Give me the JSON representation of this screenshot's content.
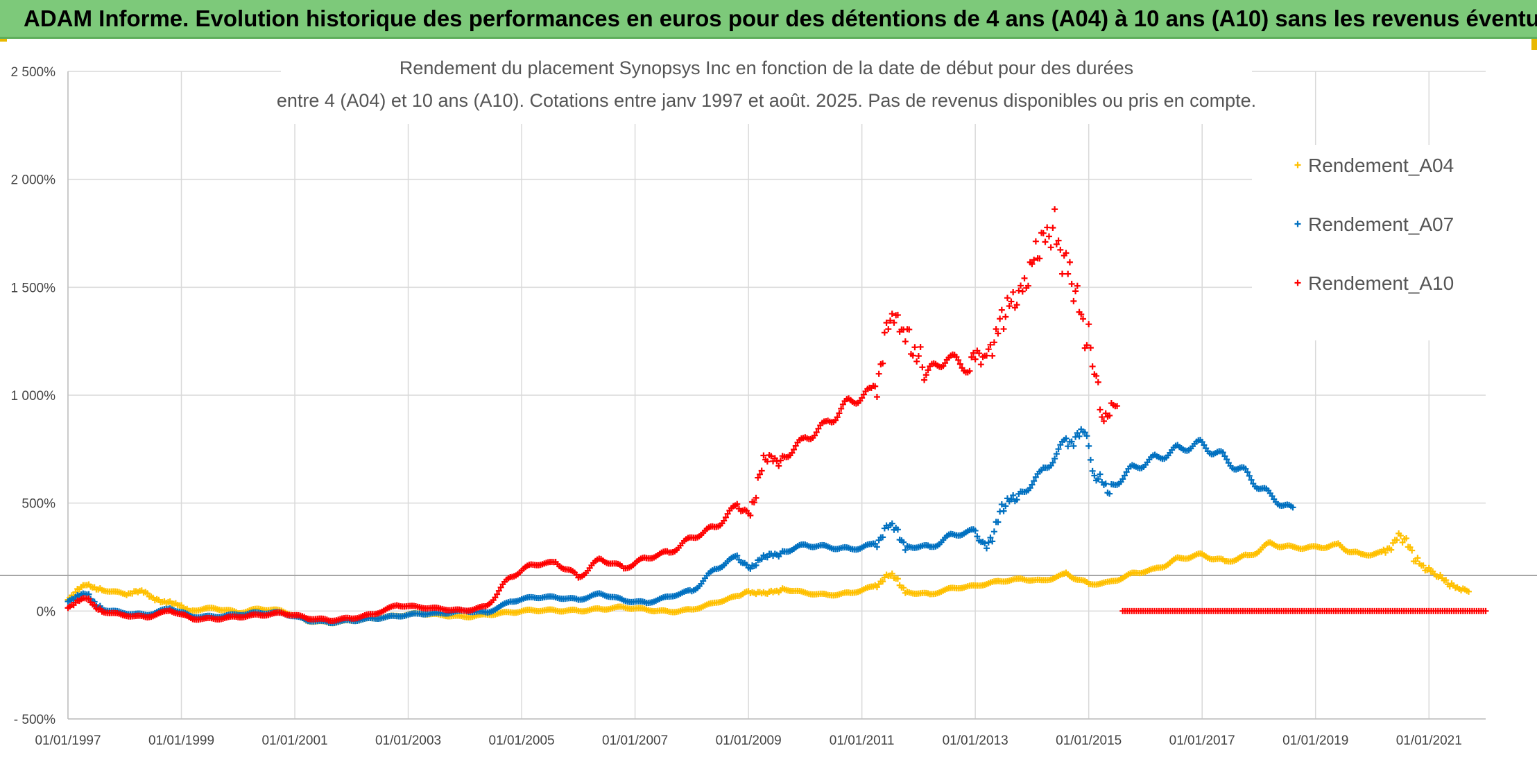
{
  "banner": {
    "text": "ADAM Informe. Evolution historique des performances en euros pour des détentions de 4 ans (A04) à 10 ans (A10) sans les revenus éventuels"
  },
  "chart_data": {
    "type": "scatter",
    "title_line1": "Rendement du placement Synopsys Inc en fonction de la date de début pour des durées",
    "title_line2": "entre 4 (A04) et 10 ans (A10). Cotations entre janv 1997 et août. 2025. Pas de revenus disponibles ou pris en compte.",
    "x_tick_labels": [
      "01/01/1997",
      "01/01/1999",
      "01/01/2001",
      "01/01/2003",
      "01/01/2005",
      "01/01/2007",
      "01/01/2009",
      "01/01/2011",
      "01/01/2013",
      "01/01/2015",
      "01/01/2017",
      "01/01/2019",
      "01/01/2021"
    ],
    "x_ticks": [
      1997,
      1999,
      2001,
      2003,
      2005,
      2007,
      2009,
      2011,
      2013,
      2015,
      2017,
      2019,
      2021
    ],
    "xlim": [
      1997,
      2022
    ],
    "y_tick_labels": [
      "- 500%",
      "0%",
      "500%",
      "1 000%",
      "1 500%",
      "2 000%",
      "2 500%"
    ],
    "y_ticks": [
      -500,
      0,
      500,
      1000,
      1500,
      2000,
      2500
    ],
    "ylim": [
      -500,
      2500
    ],
    "reference_line_y": 165,
    "grid": true,
    "legend_position": "right",
    "marker": "+",
    "series": [
      {
        "name": "Rendement_A04",
        "color": "#ffc000",
        "points": [
          [
            1997.0,
            60
          ],
          [
            1997.3,
            120
          ],
          [
            1997.6,
            100
          ],
          [
            1998.0,
            80
          ],
          [
            1998.3,
            90
          ],
          [
            1998.6,
            50
          ],
          [
            1998.9,
            30
          ],
          [
            1999.2,
            0
          ],
          [
            1999.6,
            10
          ],
          [
            2000.0,
            -10
          ],
          [
            2000.4,
            10
          ],
          [
            2000.8,
            0
          ],
          [
            2001.2,
            -40
          ],
          [
            2001.6,
            -50
          ],
          [
            2002.0,
            -40
          ],
          [
            2002.4,
            -30
          ],
          [
            2002.8,
            -20
          ],
          [
            2003.2,
            -10
          ],
          [
            2003.6,
            -20
          ],
          [
            2004.0,
            -30
          ],
          [
            2004.4,
            -20
          ],
          [
            2004.8,
            -10
          ],
          [
            2005.2,
            0
          ],
          [
            2005.6,
            0
          ],
          [
            2006.0,
            0
          ],
          [
            2006.4,
            10
          ],
          [
            2006.8,
            20
          ],
          [
            2007.2,
            10
          ],
          [
            2007.6,
            0
          ],
          [
            2008.0,
            10
          ],
          [
            2008.4,
            40
          ],
          [
            2008.8,
            70
          ],
          [
            2009.0,
            90
          ],
          [
            2009.3,
            80
          ],
          [
            2009.6,
            100
          ],
          [
            2010.0,
            80
          ],
          [
            2010.4,
            70
          ],
          [
            2010.8,
            80
          ],
          [
            2011.2,
            110
          ],
          [
            2011.5,
            170
          ],
          [
            2011.8,
            90
          ],
          [
            2012.2,
            80
          ],
          [
            2012.6,
            110
          ],
          [
            2013.0,
            120
          ],
          [
            2013.4,
            140
          ],
          [
            2013.8,
            150
          ],
          [
            2014.2,
            140
          ],
          [
            2014.6,
            170
          ],
          [
            2015.0,
            120
          ],
          [
            2015.4,
            130
          ],
          [
            2015.8,
            170
          ],
          [
            2016.2,
            190
          ],
          [
            2016.6,
            240
          ],
          [
            2017.0,
            260
          ],
          [
            2017.4,
            230
          ],
          [
            2017.8,
            260
          ],
          [
            2018.2,
            320
          ],
          [
            2018.6,
            300
          ],
          [
            2019.0,
            300
          ],
          [
            2019.4,
            310
          ],
          [
            2019.8,
            260
          ],
          [
            2020.2,
            270
          ],
          [
            2020.5,
            350
          ],
          [
            2020.8,
            230
          ],
          [
            2021.1,
            170
          ],
          [
            2021.4,
            120
          ],
          [
            2021.7,
            90
          ]
        ]
      },
      {
        "name": "Rendement_A07",
        "color": "#0070c0",
        "points": [
          [
            1997.0,
            50
          ],
          [
            1997.3,
            80
          ],
          [
            1997.6,
            10
          ],
          [
            1998.0,
            -10
          ],
          [
            1998.4,
            -20
          ],
          [
            1998.8,
            10
          ],
          [
            1999.2,
            -30
          ],
          [
            1999.6,
            -30
          ],
          [
            2000.0,
            -20
          ],
          [
            2000.4,
            -10
          ],
          [
            2000.8,
            -10
          ],
          [
            2001.2,
            -40
          ],
          [
            2001.6,
            -50
          ],
          [
            2002.0,
            -40
          ],
          [
            2002.4,
            -30
          ],
          [
            2002.8,
            -20
          ],
          [
            2003.2,
            -10
          ],
          [
            2003.6,
            -10
          ],
          [
            2004.0,
            0
          ],
          [
            2004.4,
            -10
          ],
          [
            2004.8,
            40
          ],
          [
            2005.2,
            60
          ],
          [
            2005.6,
            60
          ],
          [
            2006.0,
            50
          ],
          [
            2006.4,
            80
          ],
          [
            2006.8,
            50
          ],
          [
            2007.2,
            40
          ],
          [
            2007.6,
            70
          ],
          [
            2008.0,
            100
          ],
          [
            2008.4,
            200
          ],
          [
            2008.8,
            260
          ],
          [
            2009.0,
            200
          ],
          [
            2009.3,
            250
          ],
          [
            2009.6,
            270
          ],
          [
            2010.0,
            300
          ],
          [
            2010.4,
            290
          ],
          [
            2010.8,
            280
          ],
          [
            2011.2,
            300
          ],
          [
            2011.5,
            400
          ],
          [
            2011.8,
            300
          ],
          [
            2012.2,
            300
          ],
          [
            2012.6,
            360
          ],
          [
            2013.0,
            380
          ],
          [
            2013.2,
            300
          ],
          [
            2013.5,
            480
          ],
          [
            2013.8,
            550
          ],
          [
            2014.2,
            650
          ],
          [
            2014.6,
            780
          ],
          [
            2014.9,
            820
          ],
          [
            2015.1,
            620
          ],
          [
            2015.4,
            560
          ],
          [
            2015.8,
            650
          ],
          [
            2016.2,
            700
          ],
          [
            2016.6,
            750
          ],
          [
            2017.0,
            780
          ],
          [
            2017.4,
            720
          ],
          [
            2017.8,
            650
          ],
          [
            2018.2,
            550
          ],
          [
            2018.6,
            480
          ]
        ]
      },
      {
        "name": "Rendement_A10",
        "color": "#ff0000",
        "points": [
          [
            1997.0,
            20
          ],
          [
            1997.3,
            60
          ],
          [
            1997.6,
            0
          ],
          [
            1998.0,
            -20
          ],
          [
            1998.4,
            -30
          ],
          [
            1998.8,
            0
          ],
          [
            1999.2,
            -40
          ],
          [
            1999.6,
            -40
          ],
          [
            2000.0,
            -30
          ],
          [
            2000.4,
            -20
          ],
          [
            2000.8,
            -10
          ],
          [
            2001.2,
            -30
          ],
          [
            2001.6,
            -40
          ],
          [
            2002.0,
            -30
          ],
          [
            2002.4,
            -10
          ],
          [
            2002.8,
            30
          ],
          [
            2003.2,
            20
          ],
          [
            2003.6,
            10
          ],
          [
            2004.0,
            0
          ],
          [
            2004.4,
            20
          ],
          [
            2004.8,
            150
          ],
          [
            2005.2,
            210
          ],
          [
            2005.6,
            220
          ],
          [
            2006.0,
            150
          ],
          [
            2006.4,
            240
          ],
          [
            2006.8,
            200
          ],
          [
            2007.2,
            250
          ],
          [
            2007.6,
            280
          ],
          [
            2008.0,
            350
          ],
          [
            2008.4,
            400
          ],
          [
            2008.8,
            500
          ],
          [
            2009.0,
            450
          ],
          [
            2009.3,
            700
          ],
          [
            2009.6,
            700
          ],
          [
            2010.0,
            780
          ],
          [
            2010.4,
            850
          ],
          [
            2010.8,
            950
          ],
          [
            2011.2,
            1000
          ],
          [
            2011.5,
            1350
          ],
          [
            2011.8,
            1300
          ],
          [
            2012.1,
            1100
          ],
          [
            2012.5,
            1200
          ],
          [
            2012.9,
            1150
          ],
          [
            2013.2,
            1200
          ],
          [
            2013.5,
            1350
          ],
          [
            2013.8,
            1500
          ],
          [
            2014.1,
            1650
          ],
          [
            2014.4,
            1800
          ],
          [
            2014.7,
            1500
          ],
          [
            2015.0,
            1250
          ],
          [
            2015.2,
            900
          ],
          [
            2015.5,
            950
          ]
        ]
      }
    ],
    "flat_series": {
      "name": "Rendement_A10",
      "x_start": 2015.6,
      "x_end": 2022.0,
      "value": 0
    }
  }
}
